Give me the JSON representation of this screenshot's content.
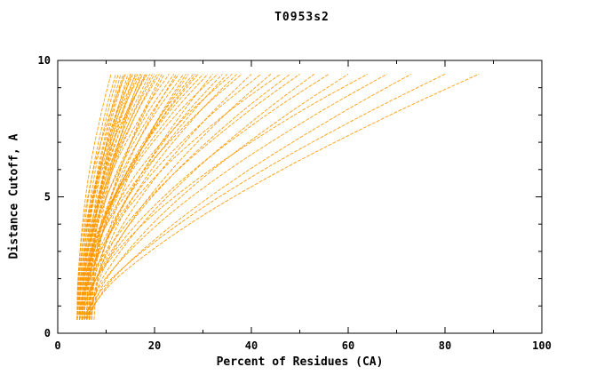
{
  "chart_data": {
    "type": "line",
    "title": "T0953s2",
    "xlabel": "Percent of Residues (CA)",
    "ylabel": "Distance Cutoff, A",
    "xlim": [
      0,
      100
    ],
    "ylim": [
      0,
      10
    ],
    "x_major_ticks": [
      0,
      20,
      40,
      60,
      80,
      100
    ],
    "x_minor_ticks": [
      10,
      30,
      50,
      70,
      90
    ],
    "y_major_ticks": [
      0,
      5,
      10
    ],
    "y_minor_ticks": [
      1,
      2,
      3,
      4,
      6,
      7,
      8,
      9
    ],
    "grid": "off",
    "legend": "none",
    "line_color": "#ff9900",
    "cutoffs": [
      0.5,
      2,
      4,
      6,
      8,
      9.5
    ],
    "curves": [
      [
        4,
        4.2,
        5.1,
        6.6,
        8.9,
        11
      ],
      [
        4.5,
        4.7,
        5.6,
        7.3,
        9.7,
        12
      ],
      [
        5,
        5.3,
        6.5,
        8.3,
        10.8,
        13
      ],
      [
        5.5,
        5.7,
        6.7,
        8.5,
        11.1,
        13.5
      ],
      [
        4,
        4.2,
        5.3,
        7.4,
        10.7,
        14
      ],
      [
        6,
        6.3,
        7.6,
        9.5,
        12.1,
        14.5
      ],
      [
        5,
        5.3,
        6.5,
        8.7,
        11.9,
        15
      ],
      [
        4.5,
        4.8,
        6.2,
        8.6,
        12.1,
        15.5
      ],
      [
        5.5,
        5.9,
        7.4,
        9.8,
        13.1,
        16
      ],
      [
        6,
        6.3,
        7.6,
        9.9,
        13.3,
        16.5
      ],
      [
        4,
        4.4,
        6,
        8.9,
        13,
        17
      ],
      [
        5,
        5.5,
        7.3,
        10.2,
        14,
        17.5
      ],
      [
        6.5,
        6.8,
        8.2,
        10.8,
        14.5,
        18
      ],
      [
        4.5,
        4.8,
        6.3,
        9.2,
        13.9,
        18.5
      ],
      [
        5.5,
        5.9,
        7.5,
        10.5,
        14.9,
        19
      ],
      [
        4,
        4.6,
        6.9,
        10.6,
        15.5,
        20
      ],
      [
        6,
        6.4,
        8.2,
        11.4,
        16.1,
        20.5
      ],
      [
        5,
        5.4,
        7.4,
        11,
        16.1,
        21
      ],
      [
        6.5,
        7.1,
        9.3,
        12.9,
        17.7,
        22
      ],
      [
        4.5,
        5,
        7.3,
        11.4,
        17.3,
        23
      ],
      [
        5.5,
        6,
        8.3,
        12.4,
        18.3,
        24
      ],
      [
        4,
        4.8,
        7.8,
        12.7,
        19.1,
        25
      ],
      [
        6,
        6.6,
        9,
        13.5,
        19.9,
        26
      ],
      [
        5,
        6.3,
        9.9,
        15,
        21.4,
        27
      ],
      [
        6.5,
        7.1,
        9.8,
        14.5,
        21.4,
        28
      ],
      [
        4.5,
        5.5,
        9,
        14.6,
        22.1,
        29
      ],
      [
        5.5,
        6.2,
        9.2,
        14.6,
        22.5,
        30
      ],
      [
        4,
        5.1,
        8.9,
        15.1,
        23.4,
        31
      ],
      [
        6,
        7.5,
        11.7,
        17.8,
        25.4,
        32
      ],
      [
        5,
        5.8,
        9.2,
        15.5,
        24.4,
        33
      ],
      [
        6.5,
        7.6,
        11.5,
        17.8,
        26.3,
        34
      ],
      [
        4.5,
        6.2,
        11.2,
        18.4,
        27.3,
        35
      ],
      [
        5.5,
        6.3,
        10.1,
        16.9,
        26.7,
        36
      ],
      [
        4,
        5.4,
        10.2,
        18,
        28.5,
        38
      ],
      [
        6,
        7.9,
        13.5,
        21.5,
        31.4,
        40
      ],
      [
        5,
        6.5,
        11.8,
        20.2,
        31.6,
        42
      ],
      [
        6.5,
        8.6,
        14.8,
        23.6,
        34.5,
        44
      ],
      [
        4.5,
        6.1,
        12.1,
        21.6,
        34.4,
        46
      ],
      [
        5.5,
        7.9,
        14.9,
        24.8,
        37.2,
        48
      ],
      [
        4,
        6.6,
        14.2,
        24.9,
        38.4,
        50
      ],
      [
        6,
        9.2,
        17.4,
        28.5,
        41.8,
        53
      ],
      [
        5,
        7.9,
        16.3,
        28.2,
        43.1,
        56
      ],
      [
        6.5,
        10.1,
        19.5,
        32.1,
        47.2,
        60
      ],
      [
        4.5,
        7.9,
        17.6,
        31.6,
        48.9,
        64
      ],
      [
        5.5,
        9.8,
        20.7,
        35.4,
        53.1,
        68
      ],
      [
        6,
        11.4,
        23.9,
        39.6,
        57.9,
        73
      ],
      [
        5,
        11.1,
        25,
        42.6,
        63.1,
        80
      ],
      [
        5.5,
        12.1,
        27.2,
        46.4,
        68.7,
        87
      ],
      [
        5,
        5.2,
        6.1,
        7.8,
        10.2,
        12.5
      ],
      [
        6,
        6.2,
        7.2,
        8.9,
        11.4,
        13.8
      ],
      [
        6.5,
        6.7,
        7.8,
        9.7,
        12.5,
        15.2
      ],
      [
        4,
        4.3,
        5.8,
        8.6,
        12.5,
        16.2
      ],
      [
        7,
        7.4,
        8.9,
        11.2,
        14.3,
        17.2
      ],
      [
        5,
        5.4,
        7,
        9.9,
        14.2,
        18.2
      ],
      [
        6,
        6.4,
        8,
        11,
        15.4,
        19.5
      ],
      [
        7,
        7.6,
        9.6,
        13,
        17.4,
        21.5
      ],
      [
        6.5,
        7.2,
        9.8,
        13.9,
        19.5,
        24.5
      ],
      [
        7.5,
        8.3,
        11,
        15.3,
        21.2,
        26.5
      ],
      [
        5,
        5.9,
        9.3,
        14.7,
        21.9,
        28.5
      ],
      [
        7,
        8.2,
        12.5,
        19.4,
        28.7,
        37
      ]
    ]
  }
}
